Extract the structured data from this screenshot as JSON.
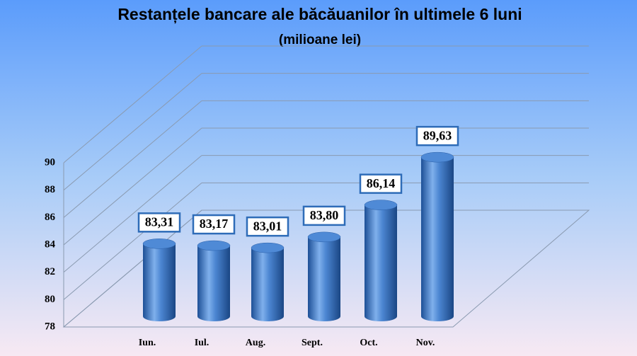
{
  "chart_data": {
    "type": "bar",
    "title": "Restanțele bancare ale băcăuanilor în ultimele 6 luni",
    "subtitle": "(milioane lei)",
    "categories": [
      "Iun.",
      "Iul.",
      "Aug.",
      "Sept.",
      "Oct.",
      "Nov."
    ],
    "values": [
      83.31,
      83.17,
      83.01,
      83.8,
      86.14,
      89.63
    ],
    "value_labels": [
      "83,31",
      "83,17",
      "83,01",
      "83,80",
      "86,14",
      "89,63"
    ],
    "color": "#3a78c8",
    "ylim": [
      78,
      90
    ],
    "yticks": [
      78,
      80,
      82,
      84,
      86,
      88,
      90
    ],
    "grid": true
  }
}
